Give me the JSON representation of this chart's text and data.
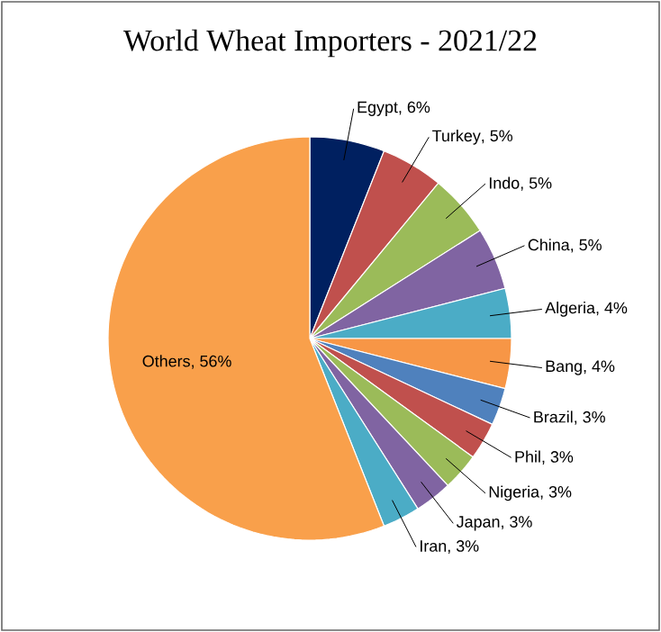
{
  "chart_data": {
    "type": "pie",
    "title": "World Wheat Importers - 2021/22",
    "categories": [
      "Egypt",
      "Turkey",
      "Indo",
      "China",
      "Algeria",
      "Bang",
      "Brazil",
      "Phil",
      "Nigeria",
      "Japan",
      "Iran",
      "Others"
    ],
    "values": [
      6,
      5,
      5,
      5,
      4,
      4,
      3,
      3,
      3,
      3,
      3,
      56
    ],
    "value_labels": [
      ", 6%",
      ", 5%",
      ", 5%",
      ", 5%",
      ", 4%",
      ", 4%",
      ", 3%",
      ", 3%",
      ", 3%",
      ", 3%",
      ", 3%",
      ", 56%"
    ],
    "colors": [
      "#002060",
      "#c0504d",
      "#9bbb59",
      "#8064a2",
      "#4bacc6",
      "#f79646",
      "#4f81bd",
      "#c0504d",
      "#9bbb59",
      "#8064a2",
      "#4bacc6",
      "#f9a04b"
    ],
    "data_labels": true
  }
}
